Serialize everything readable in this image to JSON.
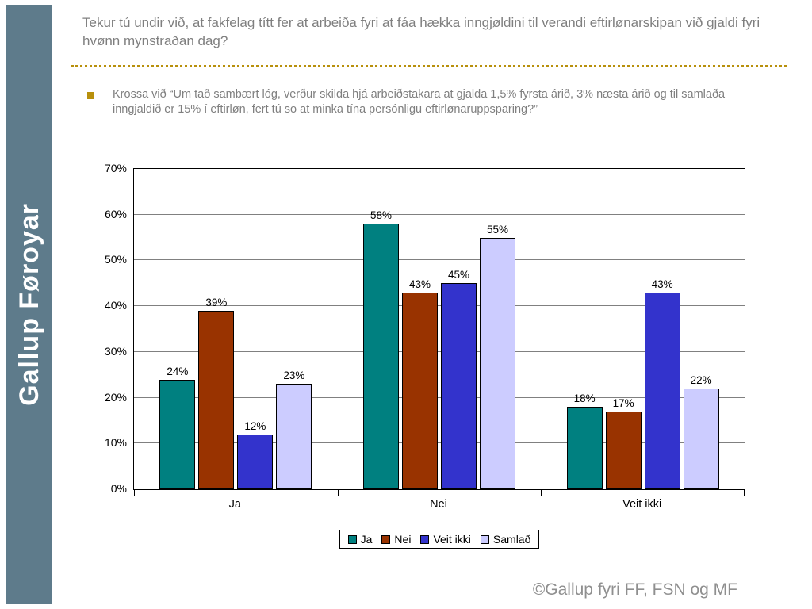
{
  "sidebar": {
    "brand": "Gallup Føroyar"
  },
  "header": {
    "title": "Tekur tú undir við, at fakfelag títt fer at arbeiða fyri at fáa hækka inngjøldini til verandi eftirlønarskipan við gjaldi fyri hvønn mynstraðan dag?"
  },
  "bullet": {
    "text": "Krossa við “Um tað sambært lóg, verður skilda hjá arbeiðstakara at gjalda 1,5% fyrsta árið, 3% næsta árið og til samlaða inngjaldið er 15% í eftirløn, fert tú so at minka tína persónligu eftirlønaruppsparing?”"
  },
  "chart_data": {
    "type": "bar",
    "title": "",
    "xlabel": "",
    "ylabel": "",
    "categories": [
      "Ja",
      "Nei",
      "Veit ikki"
    ],
    "series": [
      {
        "name": "Ja",
        "color": "#008080",
        "values": [
          24,
          58,
          18
        ]
      },
      {
        "name": "Nei",
        "color": "#993300",
        "values": [
          39,
          43,
          17
        ]
      },
      {
        "name": "Veit ikki",
        "color": "#3333CC",
        "values": [
          12,
          45,
          43
        ]
      },
      {
        "name": "Samlað",
        "color": "#CCCCFF",
        "values": [
          23,
          55,
          22
        ]
      }
    ],
    "ylim": [
      0,
      70
    ],
    "ytick_step": 10,
    "ytick_labels": [
      "0%",
      "10%",
      "20%",
      "30%",
      "40%",
      "50%",
      "60%",
      "70%"
    ],
    "data_label_format": "percent",
    "grid": true,
    "legend_position": "bottom"
  },
  "footer": {
    "copyright": "©Gallup fyri FF, FSN og MF"
  }
}
